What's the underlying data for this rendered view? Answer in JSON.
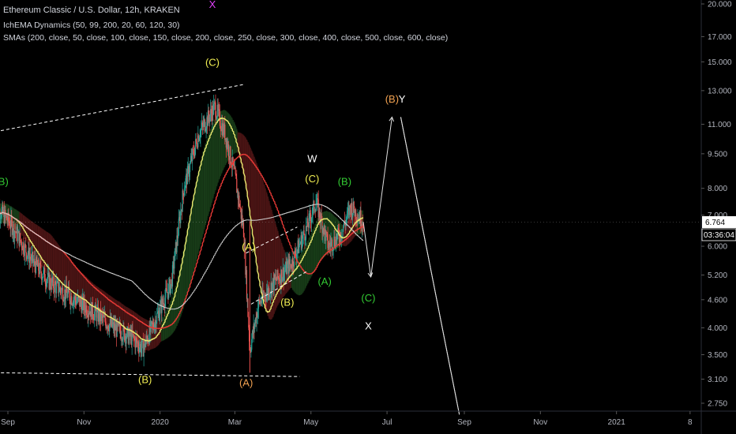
{
  "header": {
    "title": "Ethereum Classic / U.S. Dollar, 12h, KRAKEN",
    "indicator_1": "IchEMA Dynamics (50, 99, 200, 20, 60, 120, 30)",
    "indicator_2": "SMAs (200, close, 50, close, 100, close, 150, close, 200, close, 250, close, 300, close, 400, close, 500, close, 600, close)"
  },
  "colors": {
    "background": "#000000",
    "candle_up": "#26a69a",
    "candle_down": "#ef5350",
    "sma_fast": "#e8e870",
    "sma_mid": "#e53935",
    "sma_slow": "#d0d0d0",
    "cloud_red": "#5c1a1a",
    "cloud_green": "#1e4a1e",
    "yellow_label": "#f1ee52",
    "orange_label": "#f0a050",
    "green_label": "#33cc33",
    "white_label": "#ffffff",
    "magenta_label": "#e040fb"
  },
  "chart_data": {
    "type": "line",
    "title": "Ethereum Classic / U.S. Dollar, 12h, KRAKEN",
    "y_scale": "log",
    "ylim": [
      2.6,
      21
    ],
    "y_ticks": [
      "20.000",
      "17.000",
      "15.000",
      "13.000",
      "11.000",
      "9.500",
      "8.000",
      "7.000",
      "6.000",
      "5.200",
      "4.600",
      "4.000",
      "3.500",
      "3.100",
      "2.750"
    ],
    "x_ticks": [
      "Sep",
      "Nov",
      "2020",
      "Mar",
      "May",
      "Jul",
      "Sep",
      "Nov",
      "2021",
      "8"
    ],
    "price_label": "6.764",
    "countdown_label": "03:36:04",
    "series": [
      {
        "name": "close",
        "points": [
          [
            "2019-08-25",
            7.2
          ],
          [
            "2019-09-05",
            6.6
          ],
          [
            "2019-09-20",
            5.6
          ],
          [
            "2019-10-05",
            5.0
          ],
          [
            "2019-10-25",
            4.6
          ],
          [
            "2019-11-10",
            4.3
          ],
          [
            "2019-11-25",
            4.0
          ],
          [
            "2019-12-10",
            3.8
          ],
          [
            "2019-12-18",
            3.6
          ],
          [
            "2020-01-01",
            4.4
          ],
          [
            "2020-01-10",
            5.0
          ],
          [
            "2020-01-20",
            8.0
          ],
          [
            "2020-02-01",
            10.5
          ],
          [
            "2020-02-14",
            12.0
          ],
          [
            "2020-02-22",
            10.5
          ],
          [
            "2020-03-01",
            8.5
          ],
          [
            "2020-03-08",
            6.5
          ],
          [
            "2020-03-13",
            3.6
          ],
          [
            "2020-03-20",
            4.5
          ],
          [
            "2020-04-01",
            5.0
          ],
          [
            "2020-04-15",
            5.5
          ],
          [
            "2020-04-28",
            6.6
          ],
          [
            "2020-05-05",
            7.5
          ],
          [
            "2020-05-15",
            6.0
          ],
          [
            "2020-05-25",
            6.4
          ],
          [
            "2020-06-02",
            7.3
          ],
          [
            "2020-06-12",
            6.8
          ]
        ]
      }
    ],
    "projection": [
      [
        "2020-06-12",
        6.764
      ],
      [
        "2020-06-18",
        5.15
      ],
      [
        "2020-07-05",
        11.4
      ],
      [
        "2020-07-12",
        11.4
      ],
      [
        "2020-08-28",
        2.6
      ]
    ],
    "trendlines": [
      {
        "name": "upper-resistance",
        "points": [
          [
            "2019-08-22",
            10.6
          ],
          [
            "2020-03-08",
            13.4
          ]
        ]
      },
      {
        "name": "lower-support",
        "points": [
          [
            "2019-08-22",
            3.2
          ],
          [
            "2020-04-22",
            3.14
          ]
        ]
      },
      {
        "name": "channel-upper",
        "points": [
          [
            "2020-03-10",
            5.8
          ],
          [
            "2020-04-20",
            6.6
          ]
        ]
      },
      {
        "name": "channel-lower",
        "points": [
          [
            "2020-03-14",
            4.5
          ],
          [
            "2020-04-28",
            5.3
          ]
        ]
      }
    ],
    "annotations": [
      {
        "text": "(C)",
        "x": "2020-02-12",
        "y": 15.0,
        "color": "yellow_label"
      },
      {
        "text": "X",
        "x": "2020-02-12",
        "y": 20.0,
        "color": "magenta_label"
      },
      {
        "text": "(B)",
        "x": "2019-12-20",
        "y": 3.1,
        "color": "yellow_label"
      },
      {
        "text": "(A)",
        "x": "2020-03-10",
        "y": 3.05,
        "color": "orange_label"
      },
      {
        "text": "(A)",
        "x": "2020-03-12",
        "y": 6.0,
        "color": "yellow_label"
      },
      {
        "text": "(B)",
        "x": "2020-04-12",
        "y": 4.55,
        "color": "yellow_label"
      },
      {
        "text": "(C)",
        "x": "2020-05-02",
        "y": 8.4,
        "color": "yellow_label"
      },
      {
        "text": "W",
        "x": "2020-05-02",
        "y": 9.3,
        "color": "white_label"
      },
      {
        "text": "(A)",
        "x": "2020-05-12",
        "y": 5.05,
        "color": "green_label"
      },
      {
        "text": "(B)",
        "x": "2020-05-28",
        "y": 8.3,
        "color": "green_label"
      },
      {
        "text": "(C)",
        "x": "2020-06-16",
        "y": 4.65,
        "color": "green_label"
      },
      {
        "text": "X",
        "x": "2020-06-16",
        "y": 4.05,
        "color": "white_label"
      },
      {
        "text": "(B)",
        "x": "2020-07-05",
        "y": 12.5,
        "color": "orange_label"
      },
      {
        "text": "Y",
        "x": "2020-07-13",
        "y": 12.5,
        "color": "white_label"
      },
      {
        "text": "(B)",
        "x": "2019-08-27",
        "y": 8.3,
        "color": "green_label"
      }
    ]
  }
}
